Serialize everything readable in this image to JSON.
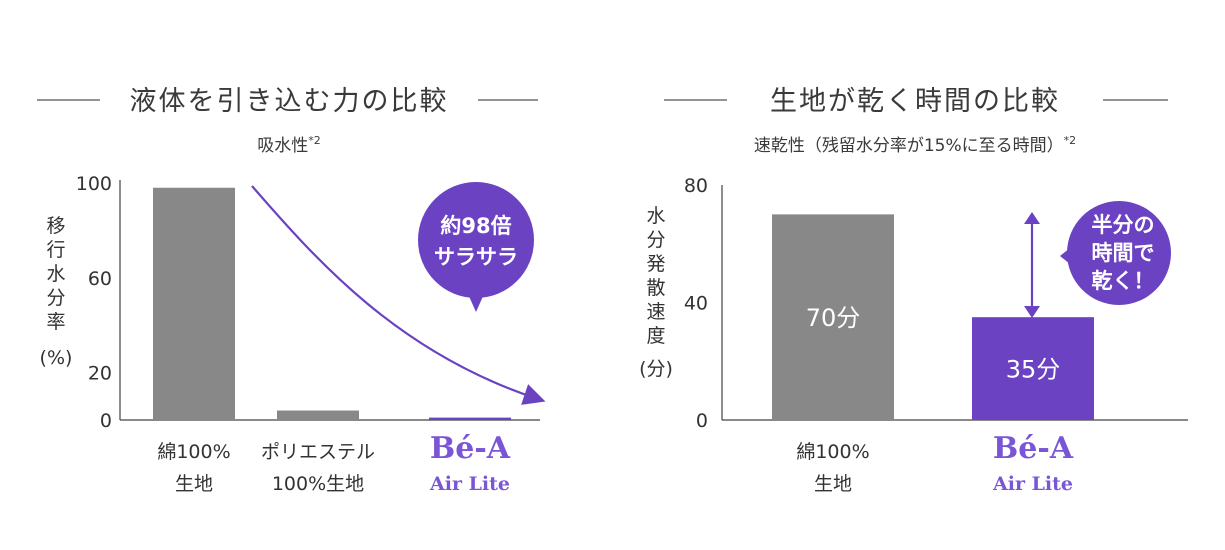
{
  "colors": {
    "gray": "#888888",
    "purple": "#6a42c2",
    "text": "#333333",
    "axis": "#444444"
  },
  "chart_data": [
    {
      "type": "bar",
      "title": "液体を引き込む力の比較",
      "subtitle": "吸水性",
      "subtitle_note": "*2",
      "ylabel": "移行水分率",
      "yunit": "(%)",
      "ylim": [
        0,
        100
      ],
      "yticks": [
        0,
        20,
        60,
        100
      ],
      "categories": [
        {
          "line1": "綿100%",
          "line2": "生地",
          "brand": false
        },
        {
          "line1": "ポリエステル",
          "line2": "100%生地",
          "brand": false
        },
        {
          "line1": "Bé-A",
          "line2": "Air Lite",
          "brand": true
        }
      ],
      "values": [
        98,
        4,
        1
      ],
      "bar_colors": [
        "#888888",
        "#888888",
        "#6a42c2"
      ],
      "callout": {
        "line1": "約98倍",
        "line2": "サラサラ"
      }
    },
    {
      "type": "bar",
      "title": "生地が乾く時間の比較",
      "subtitle": "速乾性（残留水分率が15%に至る時間）",
      "subtitle_note": "*2",
      "ylabel": "水分発散速度",
      "yunit": "(分)",
      "ylim": [
        0,
        80
      ],
      "yticks": [
        0,
        40,
        80
      ],
      "categories": [
        {
          "line1": "綿100%",
          "line2": "生地",
          "brand": false
        },
        {
          "line1": "Bé-A",
          "line2": "Air Lite",
          "brand": true
        }
      ],
      "values": [
        70,
        35
      ],
      "data_labels": [
        "70分",
        "35分"
      ],
      "bar_colors": [
        "#888888",
        "#6a42c2"
      ],
      "callout": {
        "line1": "半分の",
        "line2": "時間で",
        "line3": "乾く！"
      }
    }
  ]
}
